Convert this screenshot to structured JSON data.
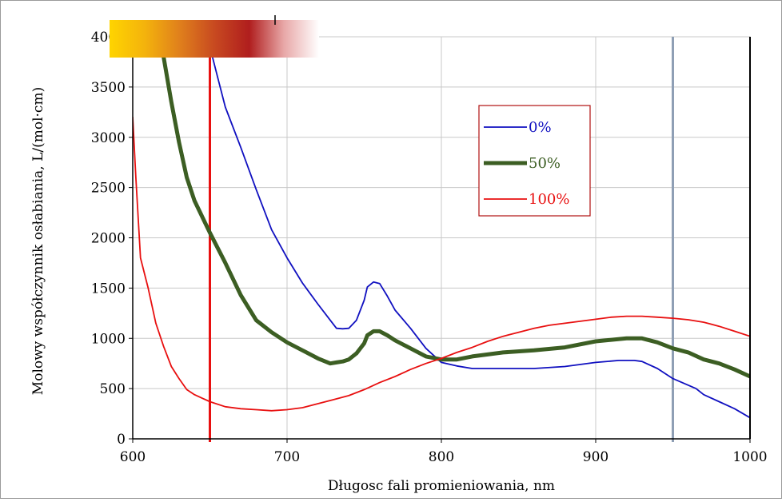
{
  "chart_data": {
    "type": "line",
    "xlabel": "Długosc fali promieniowania, nm",
    "ylabel": "Molowy współczynnik osłabiania, L/(mol·cm)",
    "xlim": [
      600,
      1000
    ],
    "ylim": [
      0,
      4000
    ],
    "x_ticks": [
      "600",
      "700",
      "800",
      "900",
      "1000"
    ],
    "y_ticks": [
      "0",
      "500",
      "1000",
      "1500",
      "2000",
      "2500",
      "3000",
      "3500",
      "4000"
    ],
    "grid": true,
    "legend_position": "upper-right",
    "gradient_bar_colors": [
      "#ffd400",
      "#f4b30c",
      "#e0801c",
      "#c84a20",
      "#b01e1e",
      "#e8a8a8",
      "#ffffff"
    ],
    "vertical_markers": [
      {
        "x": 650,
        "color": "#e81010"
      },
      {
        "x": 950,
        "color": "#8f9fb5"
      }
    ],
    "series": [
      {
        "name": "0%",
        "color": "#1010c0",
        "width": 1.8,
        "x": [
          650,
          655,
          660,
          670,
          680,
          690,
          700,
          710,
          720,
          728,
          732,
          736,
          740,
          745,
          750,
          752,
          756,
          760,
          765,
          770,
          780,
          790,
          800,
          810,
          820,
          840,
          860,
          880,
          900,
          915,
          925,
          930,
          940,
          950,
          965,
          970,
          980,
          990,
          1000
        ],
        "y": [
          3900,
          3600,
          3300,
          2900,
          2480,
          2080,
          1800,
          1550,
          1340,
          1180,
          1100,
          1095,
          1100,
          1180,
          1380,
          1510,
          1560,
          1545,
          1420,
          1280,
          1100,
          900,
          760,
          725,
          700,
          700,
          700,
          720,
          760,
          780,
          780,
          770,
          700,
          600,
          500,
          440,
          370,
          300,
          210
        ]
      },
      {
        "name": "50%",
        "color": "#3c5e23",
        "width": 5,
        "x": [
          620,
          625,
          630,
          635,
          640,
          650,
          660,
          670,
          680,
          690,
          700,
          710,
          720,
          728,
          732,
          736,
          740,
          745,
          750,
          752,
          756,
          760,
          765,
          770,
          780,
          790,
          800,
          810,
          820,
          840,
          860,
          880,
          900,
          920,
          930,
          940,
          950,
          960,
          970,
          980,
          990,
          1000
        ],
        "y": [
          3800,
          3350,
          2950,
          2600,
          2370,
          2050,
          1750,
          1430,
          1180,
          1060,
          960,
          880,
          800,
          750,
          760,
          770,
          790,
          850,
          950,
          1030,
          1070,
          1070,
          1030,
          980,
          900,
          820,
          790,
          790,
          820,
          860,
          880,
          910,
          970,
          1000,
          1000,
          960,
          900,
          860,
          790,
          750,
          690,
          620
        ]
      },
      {
        "name": "100%",
        "color": "#e81010",
        "width": 1.8,
        "x": [
          600,
          602,
          605,
          610,
          615,
          620,
          625,
          630,
          635,
          640,
          650,
          660,
          670,
          680,
          690,
          700,
          710,
          720,
          730,
          740,
          750,
          760,
          770,
          780,
          790,
          800,
          810,
          820,
          830,
          840,
          850,
          860,
          870,
          880,
          890,
          900,
          910,
          920,
          930,
          940,
          950,
          960,
          970,
          980,
          990,
          1000
        ],
        "y": [
          3200,
          2600,
          1800,
          1500,
          1150,
          920,
          720,
          600,
          490,
          440,
          370,
          320,
          300,
          290,
          280,
          290,
          310,
          350,
          390,
          430,
          490,
          560,
          620,
          690,
          750,
          800,
          860,
          910,
          970,
          1020,
          1060,
          1100,
          1130,
          1150,
          1170,
          1190,
          1210,
          1220,
          1220,
          1210,
          1200,
          1185,
          1160,
          1120,
          1070,
          1020
        ]
      }
    ]
  }
}
